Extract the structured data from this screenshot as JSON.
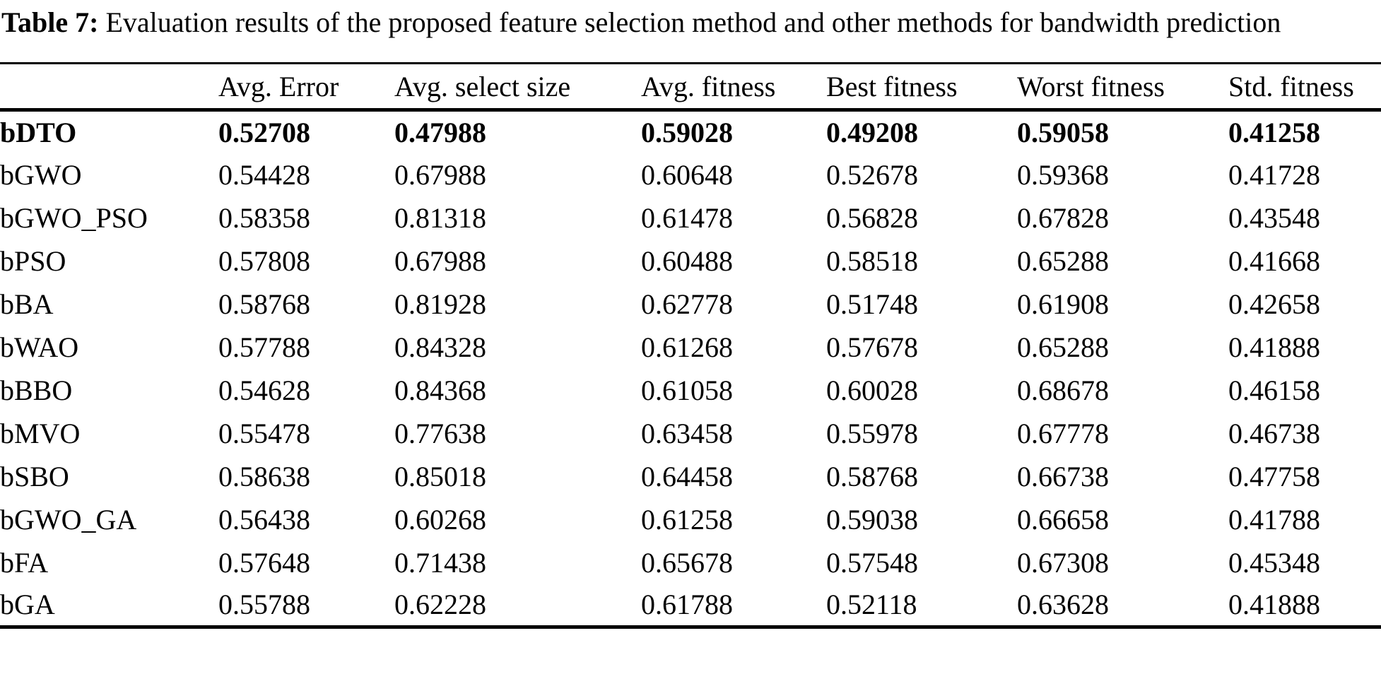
{
  "caption": {
    "label": "Table 7:",
    "text": " Evaluation results of the proposed feature selection method and other methods for bandwidth prediction"
  },
  "table": {
    "columns": [
      "",
      "Avg. Error",
      "Avg. select size",
      "Avg. fitness",
      "Best fitness",
      "Worst fitness",
      "Std. fitness"
    ],
    "rows": [
      {
        "method": "bDTO",
        "bold": true,
        "values": [
          "0.52708",
          "0.47988",
          "0.59028",
          "0.49208",
          "0.59058",
          "0.41258"
        ]
      },
      {
        "method": "bGWO",
        "bold": false,
        "values": [
          "0.54428",
          "0.67988",
          "0.60648",
          "0.52678",
          "0.59368",
          "0.41728"
        ]
      },
      {
        "method": "bGWO_PSO",
        "bold": false,
        "values": [
          "0.58358",
          "0.81318",
          "0.61478",
          "0.56828",
          "0.67828",
          "0.43548"
        ]
      },
      {
        "method": "bPSO",
        "bold": false,
        "values": [
          "0.57808",
          "0.67988",
          "0.60488",
          "0.58518",
          "0.65288",
          "0.41668"
        ]
      },
      {
        "method": "bBA",
        "bold": false,
        "values": [
          "0.58768",
          "0.81928",
          "0.62778",
          "0.51748",
          "0.61908",
          "0.42658"
        ]
      },
      {
        "method": "bWAO",
        "bold": false,
        "values": [
          "0.57788",
          "0.84328",
          "0.61268",
          "0.57678",
          "0.65288",
          "0.41888"
        ]
      },
      {
        "method": "bBBO",
        "bold": false,
        "values": [
          "0.54628",
          "0.84368",
          "0.61058",
          "0.60028",
          "0.68678",
          "0.46158"
        ]
      },
      {
        "method": "bMVO",
        "bold": false,
        "values": [
          "0.55478",
          "0.77638",
          "0.63458",
          "0.55978",
          "0.67778",
          "0.46738"
        ]
      },
      {
        "method": "bSBO",
        "bold": false,
        "values": [
          "0.58638",
          "0.85018",
          "0.64458",
          "0.58768",
          "0.66738",
          "0.47758"
        ]
      },
      {
        "method": "bGWO_GA",
        "bold": false,
        "values": [
          "0.56438",
          "0.60268",
          "0.61258",
          "0.59038",
          "0.66658",
          "0.41788"
        ]
      },
      {
        "method": "bFA",
        "bold": false,
        "values": [
          "0.57648",
          "0.71438",
          "0.65678",
          "0.57548",
          "0.67308",
          "0.45348"
        ]
      },
      {
        "method": "bGA",
        "bold": false,
        "values": [
          "0.55788",
          "0.62228",
          "0.61788",
          "0.52118",
          "0.63628",
          "0.41888"
        ]
      }
    ]
  }
}
